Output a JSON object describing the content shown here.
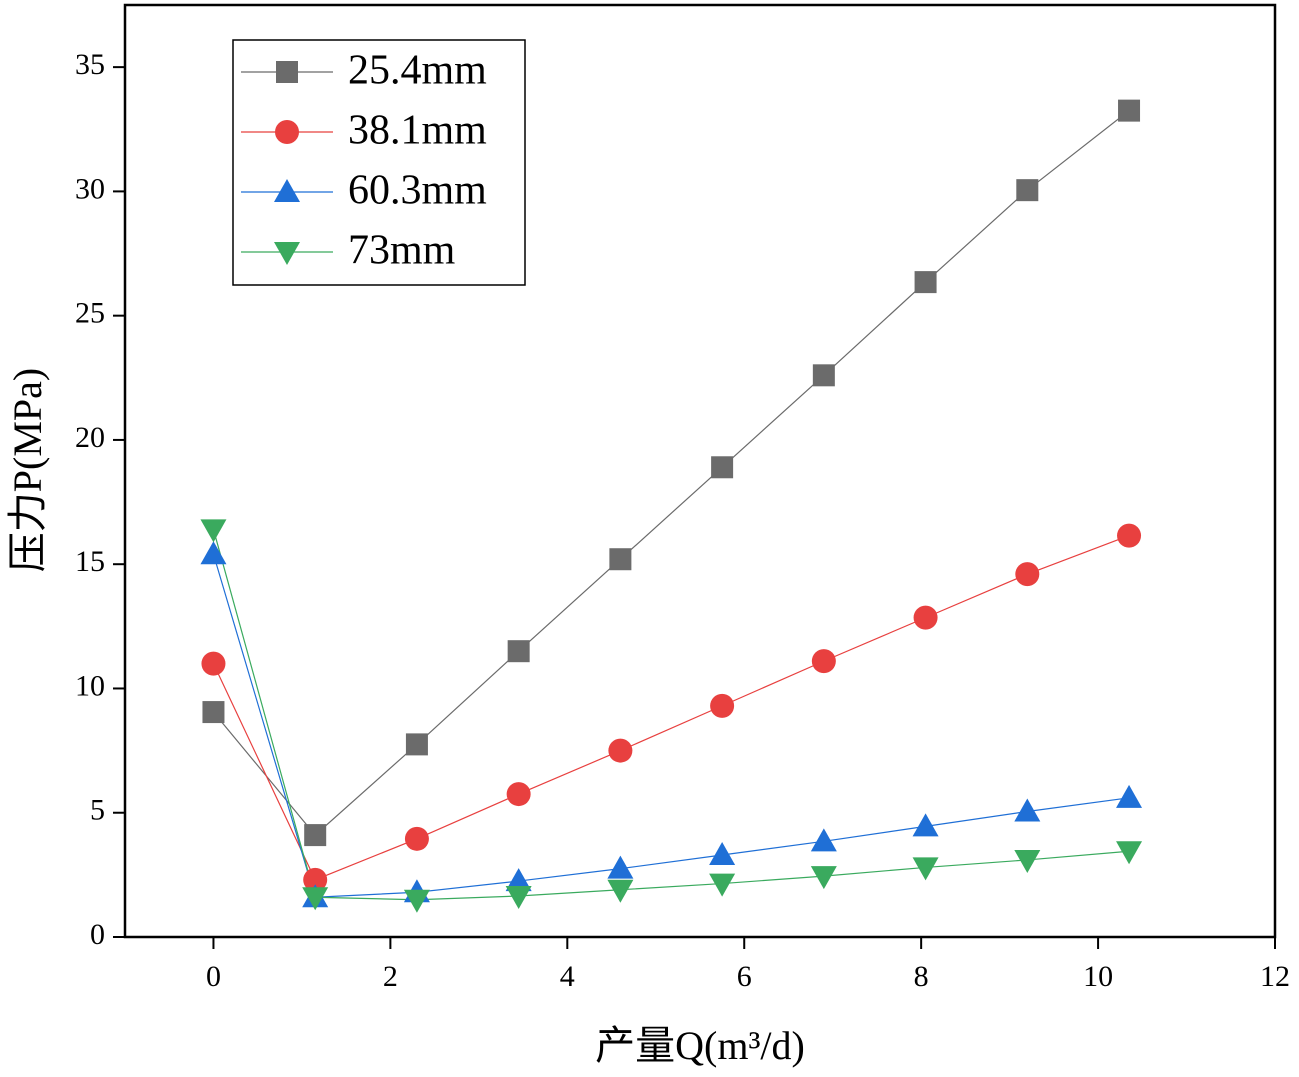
{
  "chart_data": {
    "type": "line",
    "x_label": "产量Q(m³/d)",
    "y_label": "压力P(MPa)",
    "x": [
      0,
      1.15,
      2.3,
      3.45,
      4.6,
      5.75,
      6.9,
      8.05,
      9.2,
      10.35
    ],
    "series": [
      {
        "name": "25.4mm",
        "color": "#6b6b6b",
        "marker": "square",
        "values": [
          9.05,
          4.1,
          7.75,
          11.5,
          15.2,
          18.9,
          22.6,
          26.35,
          30.05,
          33.25
        ]
      },
      {
        "name": "38.1mm",
        "color": "#e8403f",
        "marker": "circle",
        "values": [
          11.0,
          2.3,
          3.95,
          5.75,
          7.5,
          9.3,
          11.1,
          12.85,
          14.6,
          16.15
        ]
      },
      {
        "name": "60.3mm",
        "color": "#1f6fd6",
        "marker": "triangle-up",
        "values": [
          15.4,
          1.6,
          1.8,
          2.25,
          2.75,
          3.3,
          3.85,
          4.45,
          5.05,
          5.6
        ]
      },
      {
        "name": "73mm",
        "color": "#3aaa5e",
        "marker": "triangle-down",
        "values": [
          16.4,
          1.6,
          1.5,
          1.65,
          1.9,
          2.15,
          2.45,
          2.8,
          3.1,
          3.45
        ]
      }
    ],
    "xlim": [
      -1,
      12
    ],
    "xticks": [
      0,
      2,
      4,
      6,
      8,
      10,
      12
    ],
    "ylim": [
      0,
      37.5
    ],
    "yticks": [
      0,
      5,
      10,
      15,
      20,
      25,
      30,
      35
    ],
    "legend": "upper-left",
    "grid": false
  }
}
